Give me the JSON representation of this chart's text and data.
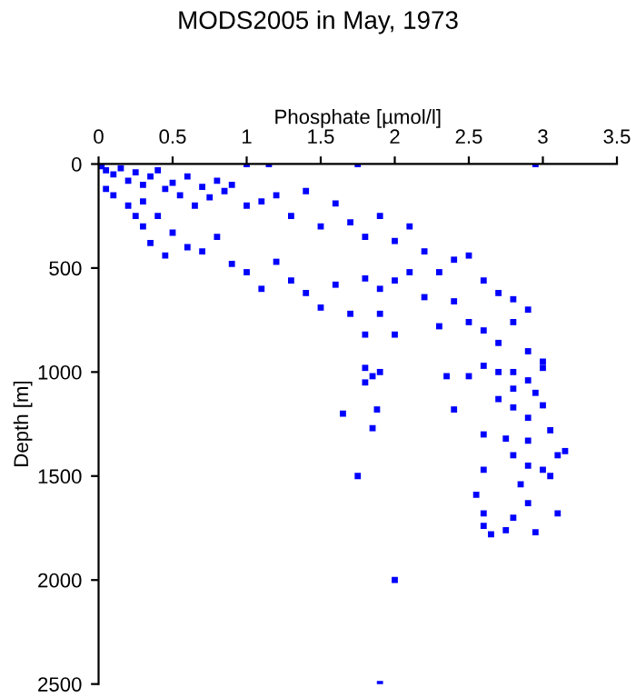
{
  "chart_data": {
    "type": "scatter",
    "title": "MODS2005 in May, 1973",
    "xlabel": "Phosphate [µmol/l]",
    "ylabel": "Depth [m]",
    "xlim": [
      0,
      3.5
    ],
    "xticks": [
      0,
      0.5,
      1,
      1.5,
      2,
      2.5,
      3,
      3.5
    ],
    "ylim": [
      2500,
      0
    ],
    "yticks": [
      0,
      500,
      1000,
      1500,
      2000,
      2500
    ],
    "grid": false,
    "marker": "square",
    "series": [
      {
        "color": "#0000ff",
        "x": [
          0.02,
          0.05,
          0.1,
          0.15,
          0.2,
          0.25,
          0.3,
          0.35,
          0.05,
          0.1,
          0.2,
          0.25,
          0.3,
          0.4,
          0.45,
          0.5,
          0.55,
          0.6,
          0.65,
          0.7,
          0.75,
          0.8,
          0.85,
          0.9,
          0.3,
          0.35,
          0.4,
          0.45,
          0.5,
          0.6,
          0.7,
          0.8,
          0.9,
          1.0,
          1.0,
          1.15,
          1.1,
          1.2,
          1.3,
          1.4,
          1.5,
          1.6,
          1.7,
          1.8,
          1.9,
          2.0,
          2.1,
          1.0,
          1.1,
          1.2,
          1.3,
          1.4,
          1.5,
          1.6,
          1.7,
          1.8,
          1.9,
          2.0,
          2.1,
          1.75,
          2.95,
          2.2,
          2.3,
          2.4,
          2.5,
          2.6,
          2.7,
          2.8,
          2.9,
          2.2,
          2.3,
          2.4,
          2.5,
          1.8,
          1.9,
          2.0,
          2.6,
          2.7,
          2.8,
          2.9,
          3.0,
          1.8,
          1.85,
          1.8,
          1.9,
          2.35,
          2.5,
          2.6,
          2.7,
          2.8,
          2.9,
          3.0,
          2.4,
          2.6,
          2.7,
          2.8,
          2.9,
          3.0,
          1.65,
          1.88,
          1.85,
          1.75,
          2.0,
          1.9,
          2.6,
          2.55,
          2.6,
          2.6,
          2.65,
          2.75,
          2.8,
          2.9,
          2.85,
          2.9,
          3.05,
          3.1,
          3.0,
          3.15,
          2.95,
          3.1,
          2.8,
          2.9,
          2.75,
          3.05,
          2.95,
          2.8
        ],
        "values": [
          10,
          30,
          50,
          20,
          80,
          40,
          100,
          60,
          120,
          150,
          200,
          250,
          180,
          30,
          120,
          90,
          150,
          60,
          200,
          110,
          160,
          80,
          130,
          100,
          300,
          380,
          250,
          440,
          330,
          400,
          420,
          350,
          480,
          200,
          0,
          0,
          180,
          150,
          250,
          130,
          300,
          190,
          280,
          350,
          250,
          370,
          300,
          520,
          600,
          470,
          560,
          620,
          690,
          580,
          720,
          550,
          600,
          560,
          520,
          0,
          0,
          420,
          520,
          460,
          440,
          560,
          620,
          650,
          700,
          640,
          780,
          660,
          760,
          820,
          720,
          820,
          800,
          860,
          760,
          900,
          950,
          980,
          1020,
          1050,
          1000,
          1020,
          1020,
          970,
          1000,
          1080,
          1040,
          980,
          1180,
          1300,
          1130,
          1170,
          1220,
          1160,
          1200,
          1180,
          1270,
          1500,
          2000,
          2500,
          1470,
          1590,
          1680,
          1740,
          1780,
          1760,
          1700,
          1630,
          1540,
          1450,
          1500,
          1400,
          1470,
          1380,
          1770,
          1680,
          1400,
          1330,
          1320,
          1280,
          1100,
          1000
        ]
      }
    ]
  }
}
